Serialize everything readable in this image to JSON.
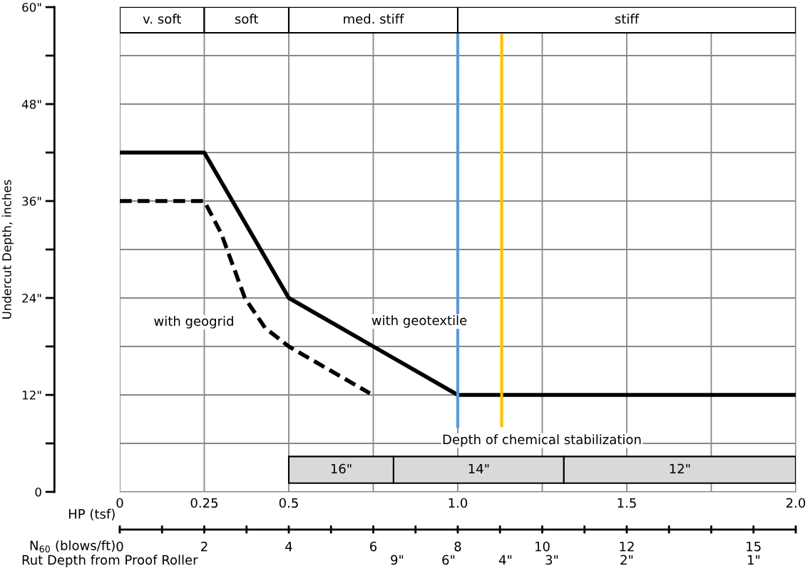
{
  "chart_data": {
    "type": "line",
    "ylabel": "Undercut Depth, inches",
    "xlabel": "HP (tsf)",
    "x2label": "N$_{60}$ (blows/ft)",
    "series": [
      {
        "x": [
          0,
          0.25,
          0.5,
          1.0,
          2.0
        ],
        "values": [
          42,
          42,
          24,
          12,
          12
        ],
        "color": "#000000",
        "line_style": "solid"
      },
      {
        "x": [
          0,
          0.25,
          0.3,
          0.37,
          0.43,
          0.5,
          0.74
        ],
        "values": [
          36,
          36,
          32,
          24,
          20.3,
          18,
          12.2
        ],
        "color": "#000000",
        "line_style": "dashed"
      },
      {
        "x": [
          1.0,
          1.0
        ],
        "values": [
          8.1,
          56.9
        ],
        "color": "#5b9bd5",
        "line_style": "solid"
      },
      {
        "x": [
          1.13,
          1.13
        ],
        "values": [
          8.2,
          56.5
        ],
        "color": "#ffc000",
        "line_style": "solid"
      }
    ],
    "xlim": [
      0,
      2
    ],
    "ylim": [
      0,
      60
    ],
    "xticks": [
      0,
      0.25,
      0.5,
      {
        "value": 0.75,
        "label": null
      },
      {
        "value": 1.0,
        "label": "1.0"
      },
      {
        "value": 1.25,
        "label": null
      },
      1.5,
      {
        "value": 1.75,
        "label": null
      },
      {
        "value": 2.0,
        "label": "2.0"
      }
    ],
    "yticks": [
      0,
      {
        "value": 6,
        "label": null
      },
      {
        "value": 12,
        "label": "12\""
      },
      {
        "value": 18,
        "label": null
      },
      {
        "value": 24,
        "label": "24\""
      },
      {
        "value": 30,
        "label": null
      },
      {
        "value": 36,
        "label": "36\""
      },
      {
        "value": 42,
        "label": null
      },
      {
        "value": 48,
        "label": "48\""
      },
      {
        "value": 54,
        "label": null
      },
      {
        "value": 60,
        "label": "60\""
      }
    ],
    "x2lim": [
      0,
      16
    ],
    "x2ticks": [
      0,
      2,
      4,
      6,
      8,
      10,
      12,
      15
    ],
    "bands": [
      {
        "axis": "x",
        "from": 0,
        "to": 0.25,
        "label": "v. soft",
        "color": "#ffffff"
      },
      {
        "axis": "x",
        "from": 0.25,
        "to": 0.5,
        "label": "soft",
        "color": "#ffffff"
      },
      {
        "axis": "x",
        "from": 0.5,
        "to": 1.0,
        "label": "med. stiff",
        "color": "#ffffff"
      },
      {
        "axis": "x",
        "from": 1.0,
        "to": 2.0,
        "label": "stiff",
        "color": "#ffffff"
      },
      {
        "axis": "x",
        "from": 0.5,
        "to": 0.81,
        "label": "16\"",
        "color": "#d9d9d9"
      },
      {
        "axis": "x",
        "from": 0.81,
        "to": 1.314,
        "label": "14\"",
        "color": "#d9d9d9"
      },
      {
        "axis": "x",
        "from": 1.314,
        "to": 2.0,
        "label": "12\"",
        "color": "#d9d9d9"
      }
    ],
    "annotations": [
      "with geogrid",
      "with geotextile",
      "Depth of chemical stabilization",
      "Rut Depth from Proof Roller",
      "9\"",
      "6\"",
      "4\"",
      "3\"",
      "2\"",
      "1\""
    ],
    "grid": true
  }
}
